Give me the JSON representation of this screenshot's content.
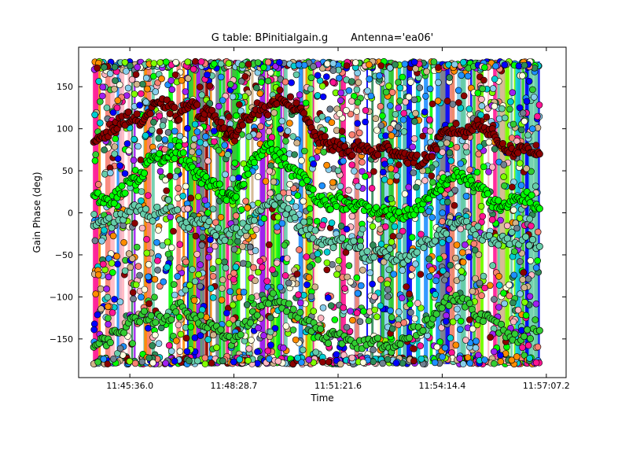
{
  "chart_data": {
    "type": "scatter",
    "title": "G table: BPinitialgain.g       Antenna='ea06'",
    "xlabel": "Time",
    "ylabel": "Gain Phase (deg)",
    "x_ticks": [
      "11:45:36.0",
      "11:48:28.7",
      "11:51:21.6",
      "11:54:14.4",
      "11:57:07.2"
    ],
    "x_tick_seconds": [
      42336.0,
      42508.7,
      42681.6,
      42854.4,
      43027.2
    ],
    "xlim": [
      "11:44:11",
      "11:57:40"
    ],
    "y_ticks": [
      150,
      100,
      50,
      0,
      -50,
      -100,
      -150
    ],
    "ylim": [
      -196,
      197
    ],
    "x_range_data": [
      "11:44:36",
      "11:56:56"
    ],
    "y_range_data": [
      -180,
      180
    ],
    "grid": false,
    "legend": "none",
    "notes_visible": "dense overlapping scatter of many colored series filling -180 to 180 deg; prominent dark-red series near 60-130 deg, bright green series wandering between -170 and 80 deg",
    "series_colors": [
      "#1e90ff",
      "#ff1493",
      "#ff8c00",
      "#a020f0",
      "#ffb6c1",
      "#87ceeb",
      "#708090",
      "#7fff00",
      "#32cd32",
      "#00ced1",
      "#fa8072",
      "#ffffe0",
      "#0000ff",
      "#8b0000",
      "#66cdaa",
      "#00ff00",
      "#2e8b57",
      "#d2b48c"
    ],
    "highlight_series": [
      {
        "color": "#8b0000",
        "points": [
          [
            "11:44:36",
            85
          ],
          [
            "11:44:55",
            95
          ],
          [
            "11:45:15",
            105
          ],
          [
            "11:45:36",
            115
          ],
          [
            "11:45:55",
            108
          ],
          [
            "11:46:15",
            125
          ],
          [
            "11:46:35",
            130
          ],
          [
            "11:46:55",
            115
          ],
          [
            "11:47:15",
            130
          ],
          [
            "11:47:35",
            118
          ],
          [
            "11:47:55",
            120
          ],
          [
            "11:48:15",
            95
          ],
          [
            "11:48:28",
            90
          ],
          [
            "11:48:45",
            110
          ],
          [
            "11:49:05",
            125
          ],
          [
            "11:49:25",
            118
          ],
          [
            "11:49:45",
            140
          ],
          [
            "11:50:05",
            130
          ],
          [
            "11:50:25",
            115
          ],
          [
            "11:50:45",
            90
          ],
          [
            "11:51:05",
            82
          ],
          [
            "11:51:21",
            78
          ],
          [
            "11:51:40",
            72
          ],
          [
            "11:52:00",
            80
          ],
          [
            "11:52:20",
            70
          ],
          [
            "11:52:40",
            78
          ],
          [
            "11:53:00",
            72
          ],
          [
            "11:53:20",
            65
          ],
          [
            "11:53:40",
            60
          ],
          [
            "11:54:00",
            75
          ],
          [
            "11:54:14",
            92
          ],
          [
            "11:54:35",
            100
          ],
          [
            "11:54:55",
            95
          ],
          [
            "11:55:15",
            108
          ],
          [
            "11:55:35",
            95
          ],
          [
            "11:55:55",
            80
          ],
          [
            "11:56:15",
            72
          ],
          [
            "11:56:35",
            78
          ],
          [
            "11:56:56",
            70
          ]
        ]
      },
      {
        "color": "#00ff00",
        "points": [
          [
            "11:44:36",
            25
          ],
          [
            "11:44:55",
            10
          ],
          [
            "11:45:15",
            20
          ],
          [
            "11:45:36",
            35
          ],
          [
            "11:45:55",
            45
          ],
          [
            "11:46:15",
            70
          ],
          [
            "11:46:35",
            60
          ],
          [
            "11:46:55",
            75
          ],
          [
            "11:47:15",
            55
          ],
          [
            "11:47:35",
            40
          ],
          [
            "11:47:55",
            35
          ],
          [
            "11:48:15",
            20
          ],
          [
            "11:48:28",
            15
          ],
          [
            "11:48:45",
            40
          ],
          [
            "11:49:05",
            70
          ],
          [
            "11:49:25",
            80
          ],
          [
            "11:49:45",
            65
          ],
          [
            "11:50:05",
            50
          ],
          [
            "11:50:25",
            40
          ],
          [
            "11:50:45",
            20
          ],
          [
            "11:51:05",
            10
          ],
          [
            "11:51:21",
            15
          ],
          [
            "11:51:40",
            5
          ],
          [
            "11:52:00",
            10
          ],
          [
            "11:52:20",
            0
          ],
          [
            "11:52:40",
            5
          ],
          [
            "11:53:00",
            -5
          ],
          [
            "11:53:20",
            0
          ],
          [
            "11:53:40",
            10
          ],
          [
            "11:54:00",
            20
          ],
          [
            "11:54:14",
            35
          ],
          [
            "11:54:35",
            45
          ],
          [
            "11:54:55",
            40
          ],
          [
            "11:55:15",
            30
          ],
          [
            "11:55:35",
            15
          ],
          [
            "11:55:55",
            5
          ],
          [
            "11:56:15",
            15
          ],
          [
            "11:56:35",
            20
          ],
          [
            "11:56:56",
            5
          ]
        ]
      },
      {
        "color": "#32cd32",
        "points": [
          [
            "11:44:36",
            -160
          ],
          [
            "11:45:00",
            -150
          ],
          [
            "11:45:30",
            -135
          ],
          [
            "11:46:00",
            -120
          ],
          [
            "11:46:30",
            -130
          ],
          [
            "11:47:00",
            -110
          ],
          [
            "11:47:30",
            -125
          ],
          [
            "11:48:00",
            -140
          ],
          [
            "11:48:28",
            -155
          ],
          [
            "11:49:00",
            -120
          ],
          [
            "11:49:30",
            -100
          ],
          [
            "11:50:00",
            -115
          ],
          [
            "11:50:30",
            -130
          ],
          [
            "11:51:00",
            -150
          ],
          [
            "11:51:21",
            -145
          ],
          [
            "11:51:50",
            -160
          ],
          [
            "11:52:20",
            -150
          ],
          [
            "11:52:50",
            -165
          ],
          [
            "11:53:20",
            -145
          ],
          [
            "11:53:50",
            -130
          ],
          [
            "11:54:14",
            -110
          ],
          [
            "11:54:45",
            -100
          ],
          [
            "11:55:15",
            -120
          ],
          [
            "11:55:45",
            -135
          ],
          [
            "11:56:15",
            -150
          ],
          [
            "11:56:56",
            -140
          ]
        ]
      },
      {
        "color": "#66cdaa",
        "points": [
          [
            "11:44:36",
            -20
          ],
          [
            "11:45:10",
            -10
          ],
          [
            "11:45:40",
            5
          ],
          [
            "11:46:10",
            -5
          ],
          [
            "11:46:40",
            10
          ],
          [
            "11:47:10",
            -15
          ],
          [
            "11:47:40",
            -5
          ],
          [
            "11:48:10",
            -30
          ],
          [
            "11:48:40",
            -20
          ],
          [
            "11:49:10",
            0
          ],
          [
            "11:49:40",
            15
          ],
          [
            "11:50:10",
            -10
          ],
          [
            "11:50:40",
            -25
          ],
          [
            "11:51:10",
            -40
          ],
          [
            "11:51:40",
            -35
          ],
          [
            "11:52:10",
            -50
          ],
          [
            "11:52:40",
            -45
          ],
          [
            "11:53:10",
            -60
          ],
          [
            "11:53:40",
            -40
          ],
          [
            "11:54:10",
            -25
          ],
          [
            "11:54:40",
            -10
          ],
          [
            "11:55:10",
            -20
          ],
          [
            "11:55:40",
            -35
          ],
          [
            "11:56:10",
            -30
          ],
          [
            "11:56:56",
            -40
          ]
        ]
      }
    ]
  }
}
